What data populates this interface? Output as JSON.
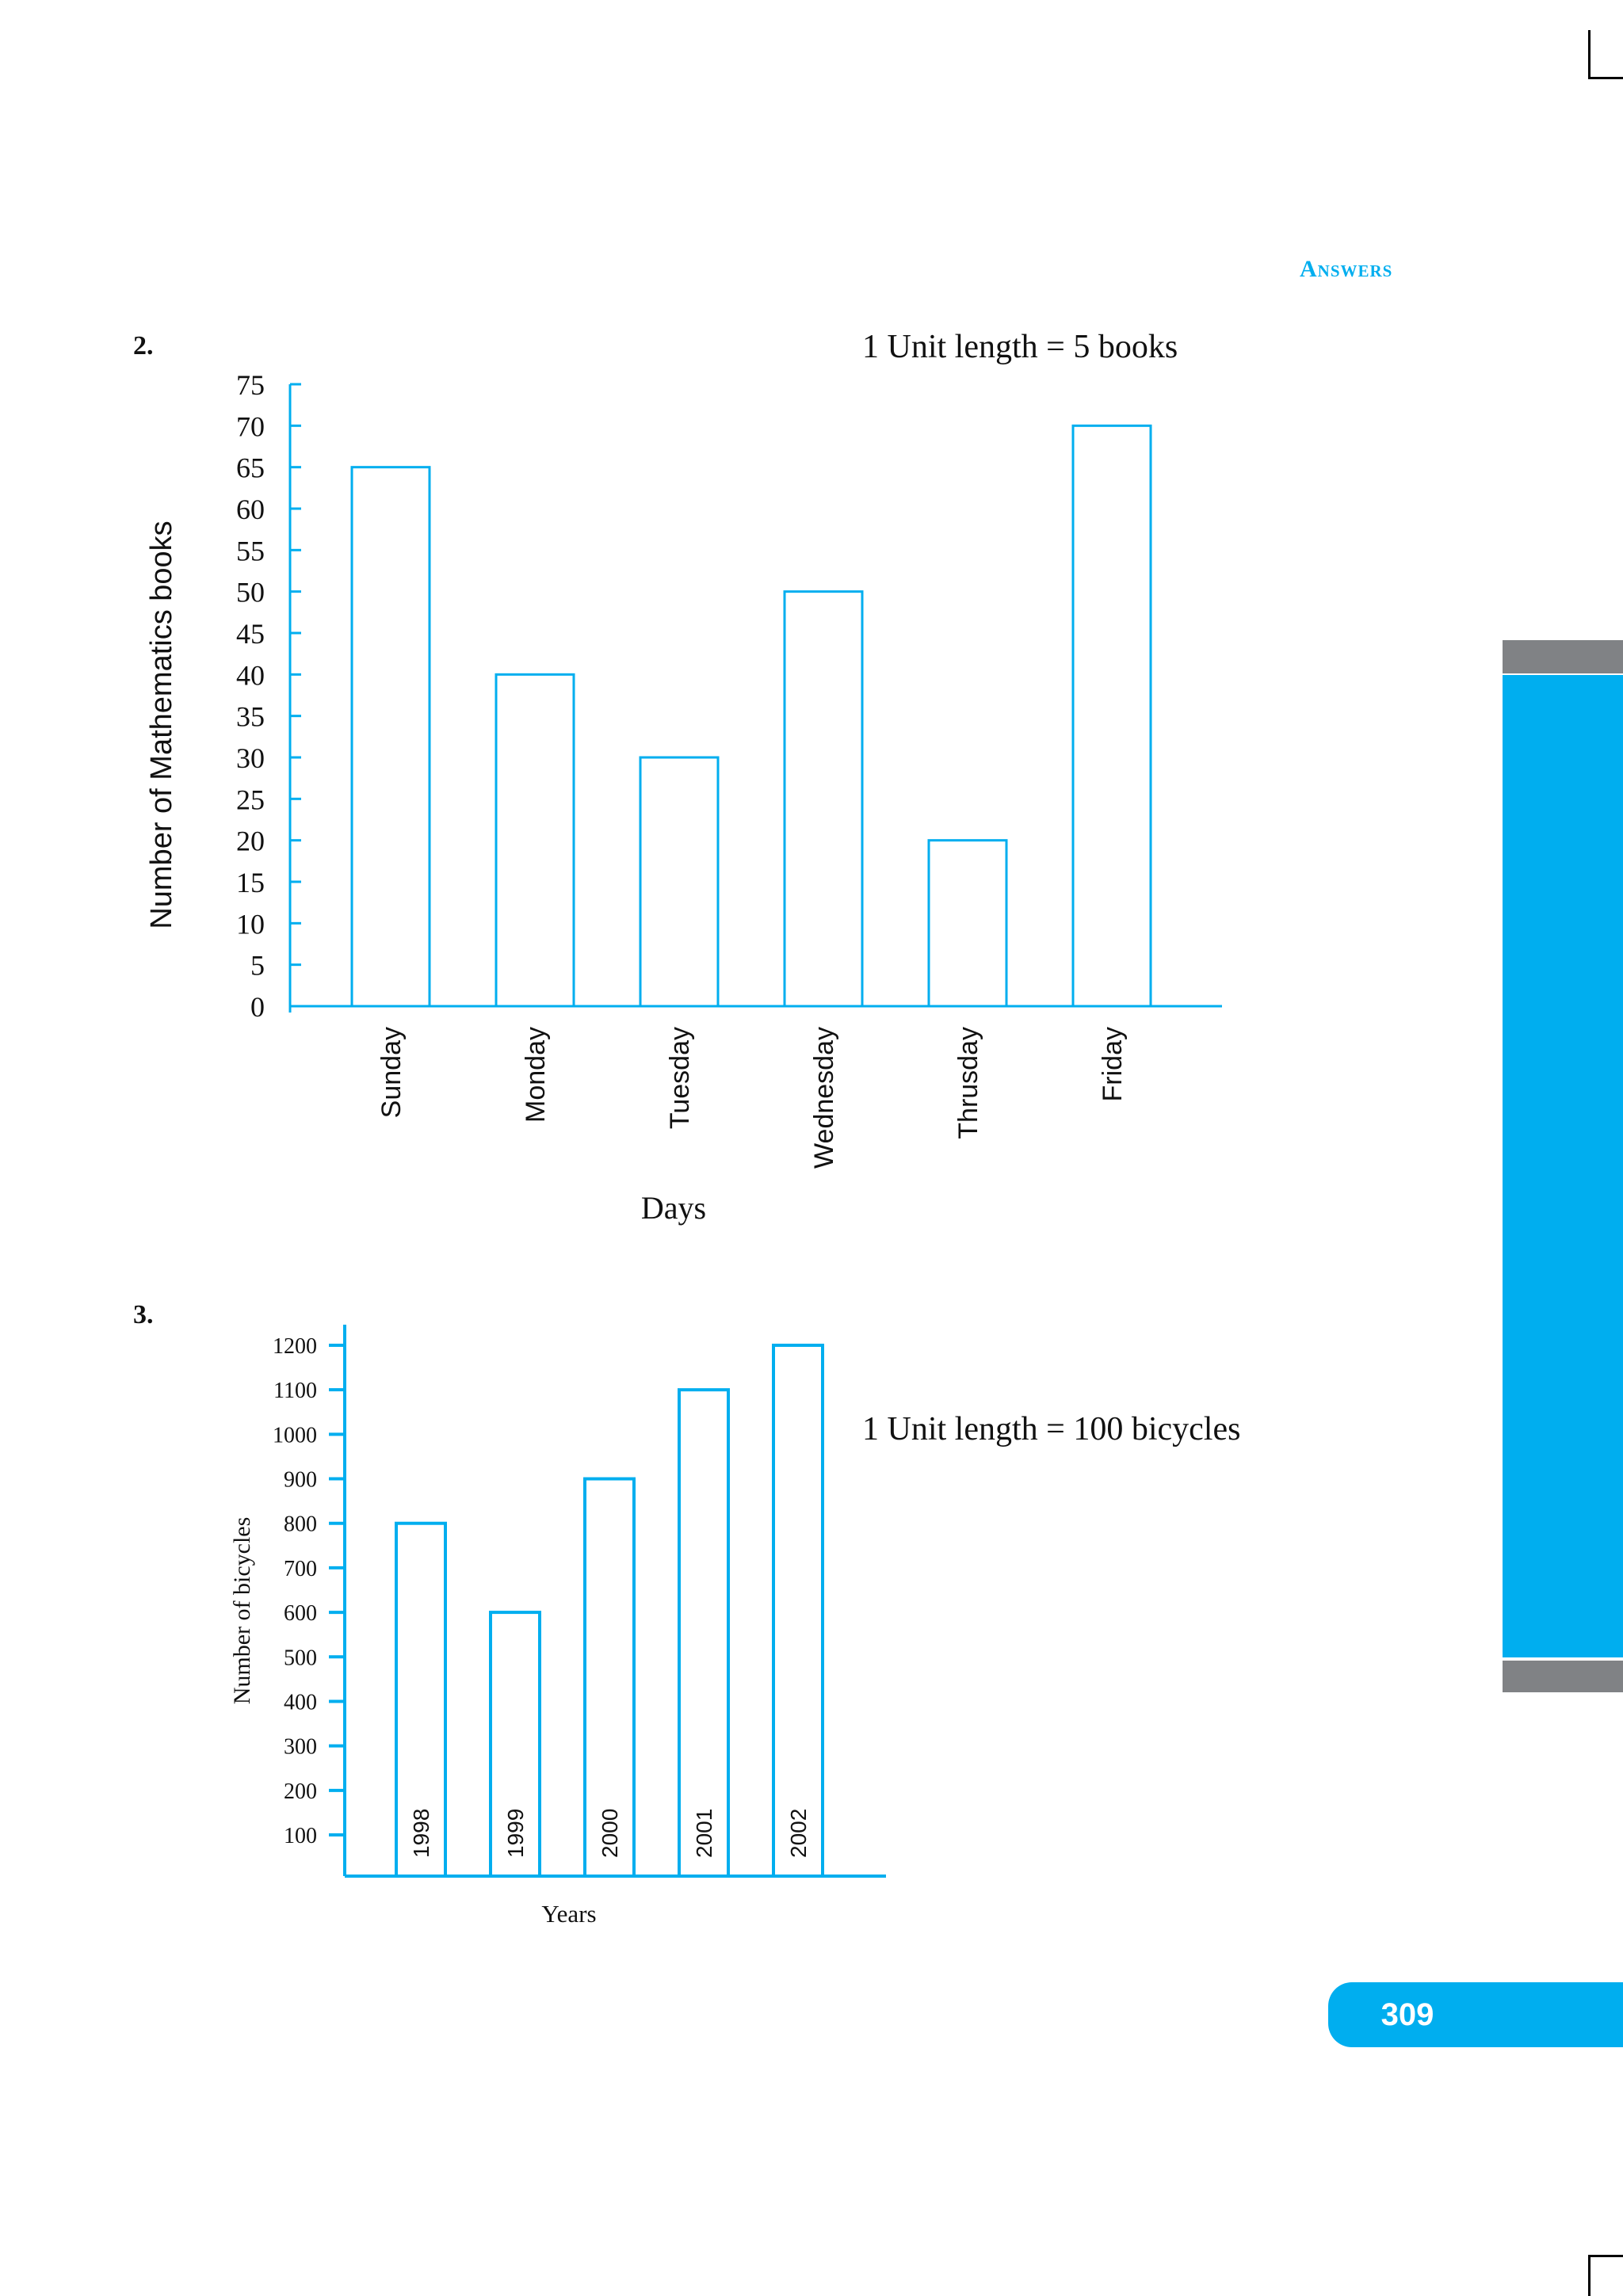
{
  "header": {
    "title": "Answers"
  },
  "page_number": "309",
  "colors": {
    "accent": "#00aeef",
    "tab_grey": "#808285"
  },
  "questions": [
    {
      "number": "2.",
      "unit_note": "1 Unit length = 5 books"
    },
    {
      "number": "3.",
      "unit_note": "1 Unit length = 100 bicycles"
    }
  ],
  "chart_data": [
    {
      "type": "bar",
      "title": "",
      "categories": [
        "Sunday",
        "Monday",
        "Tuesday",
        "Wednesday",
        "Thrusday",
        "Friday"
      ],
      "values": [
        65,
        40,
        30,
        50,
        20,
        70
      ],
      "xlabel": "Days",
      "ylabel": "Number of Mathematics books",
      "ylim": [
        0,
        75
      ],
      "yticks": [
        0,
        5,
        10,
        15,
        20,
        25,
        30,
        35,
        40,
        45,
        50,
        55,
        60,
        65,
        70,
        75
      ],
      "grid": false
    },
    {
      "type": "bar",
      "title": "",
      "categories": [
        "1998",
        "1999",
        "2000",
        "2001",
        "2002"
      ],
      "values": [
        800,
        600,
        900,
        1100,
        1200
      ],
      "xlabel": "Years",
      "ylabel": "Number of bicycles",
      "ylim": [
        0,
        1200
      ],
      "yticks": [
        100,
        200,
        300,
        400,
        500,
        600,
        700,
        800,
        900,
        1000,
        1100,
        1200
      ],
      "grid": false
    }
  ]
}
